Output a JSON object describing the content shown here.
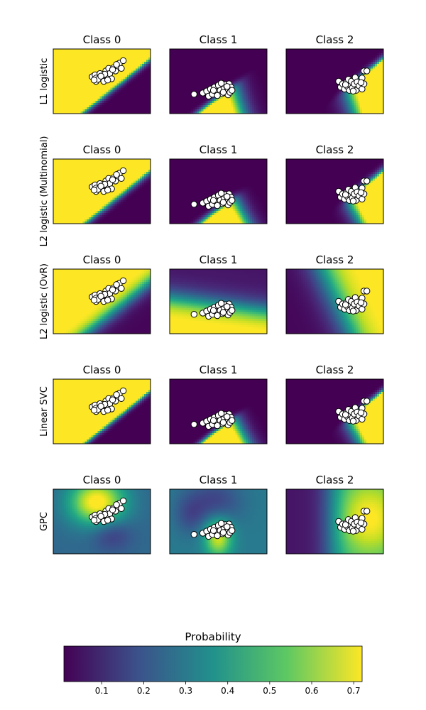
{
  "figure": {
    "colorbar": {
      "label": "Probability",
      "ticks": [
        "0.1",
        "0.2",
        "0.3",
        "0.4",
        "0.5",
        "0.6",
        "0.7"
      ],
      "tick_values": [
        0.1,
        0.2,
        0.3,
        0.4,
        0.5,
        0.6,
        0.7
      ],
      "range": [
        0.01,
        0.72
      ],
      "colormap": "viridis",
      "colors": [
        "#440154",
        "#3b528b",
        "#21918c",
        "#5ec962",
        "#fde725"
      ]
    },
    "rows": [
      {
        "label": "L1 logistic"
      },
      {
        "label": "L2 logistic (Multinomial)"
      },
      {
        "label": "L2 logistic (OvR)"
      },
      {
        "label": "Linear SVC"
      },
      {
        "label": "GPC"
      }
    ],
    "columns": [
      {
        "title": "Class 0"
      },
      {
        "title": "Class 1"
      },
      {
        "title": "Class 2"
      }
    ]
  },
  "chart_data": {
    "type": "heatmap",
    "description_free": true,
    "colorbar_label": "Probability",
    "colorbar_ticks": [
      0.1,
      0.2,
      0.3,
      0.4,
      0.5,
      0.6,
      0.7
    ],
    "value_range": [
      0.01,
      0.72
    ],
    "row_labels": [
      "L1 logistic",
      "L2 logistic (Multinomial)",
      "L2 logistic (OvR)",
      "Linear SVC",
      "GPC"
    ],
    "column_titles": [
      "Class 0",
      "Class 1",
      "Class 2"
    ],
    "grid": false,
    "axes_ticks": false,
    "points": {
      "class0": [
        [
          0.4,
          0.57
        ],
        [
          0.43,
          0.6
        ],
        [
          0.44,
          0.55
        ],
        [
          0.44,
          0.5
        ],
        [
          0.48,
          0.62
        ],
        [
          0.5,
          0.56
        ],
        [
          0.52,
          0.5
        ],
        [
          0.54,
          0.66
        ],
        [
          0.55,
          0.59
        ],
        [
          0.57,
          0.7
        ],
        [
          0.58,
          0.62
        ],
        [
          0.6,
          0.54
        ],
        [
          0.62,
          0.71
        ],
        [
          0.64,
          0.66
        ],
        [
          0.66,
          0.74
        ],
        [
          0.68,
          0.78
        ],
        [
          0.7,
          0.7
        ],
        [
          0.72,
          0.82
        ],
        [
          0.46,
          0.53
        ],
        [
          0.53,
          0.61
        ],
        [
          0.61,
          0.68
        ],
        [
          0.49,
          0.58
        ],
        [
          0.56,
          0.52
        ],
        [
          0.65,
          0.76
        ],
        [
          0.42,
          0.52
        ]
      ],
      "class1": [
        [
          0.25,
          0.3
        ],
        [
          0.34,
          0.32
        ],
        [
          0.38,
          0.35
        ],
        [
          0.4,
          0.27
        ],
        [
          0.42,
          0.38
        ],
        [
          0.44,
          0.3
        ],
        [
          0.46,
          0.41
        ],
        [
          0.48,
          0.34
        ],
        [
          0.5,
          0.44
        ],
        [
          0.52,
          0.36
        ],
        [
          0.54,
          0.31
        ],
        [
          0.56,
          0.4
        ],
        [
          0.57,
          0.45
        ],
        [
          0.58,
          0.34
        ],
        [
          0.6,
          0.38
        ],
        [
          0.6,
          0.29
        ],
        [
          0.61,
          0.46
        ],
        [
          0.62,
          0.33
        ],
        [
          0.63,
          0.41
        ],
        [
          0.64,
          0.36
        ],
        [
          0.53,
          0.47
        ],
        [
          0.49,
          0.28
        ],
        [
          0.45,
          0.36
        ],
        [
          0.59,
          0.42
        ],
        [
          0.55,
          0.33
        ]
      ],
      "class2": [
        [
          0.54,
          0.5
        ],
        [
          0.56,
          0.41
        ],
        [
          0.58,
          0.46
        ],
        [
          0.6,
          0.38
        ],
        [
          0.62,
          0.48
        ],
        [
          0.63,
          0.42
        ],
        [
          0.64,
          0.53
        ],
        [
          0.65,
          0.36
        ],
        [
          0.66,
          0.45
        ],
        [
          0.67,
          0.5
        ],
        [
          0.68,
          0.4
        ],
        [
          0.7,
          0.46
        ],
        [
          0.71,
          0.56
        ],
        [
          0.72,
          0.36
        ],
        [
          0.73,
          0.49
        ],
        [
          0.75,
          0.43
        ],
        [
          0.78,
          0.55
        ],
        [
          0.78,
          0.38
        ],
        [
          0.8,
          0.46
        ],
        [
          0.8,
          0.66
        ],
        [
          0.83,
          0.66
        ],
        [
          0.77,
          0.48
        ],
        [
          0.69,
          0.35
        ],
        [
          0.61,
          0.45
        ]
      ]
    }
  }
}
